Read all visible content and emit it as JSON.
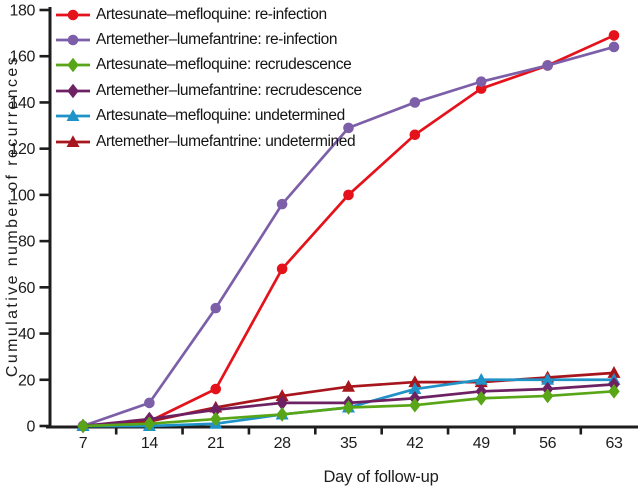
{
  "chart_data": {
    "type": "line",
    "title": "",
    "xlabel": "Day of follow-up",
    "ylabel": "Cumulative number of recurrences",
    "x": [
      7,
      14,
      21,
      28,
      35,
      42,
      49,
      56,
      63
    ],
    "xlim": [
      3.5,
      66.5
    ],
    "ylim": [
      0,
      180
    ],
    "y_tick_step": 20,
    "x_tick_labels": [
      "7",
      "14",
      "21",
      "28",
      "35",
      "42",
      "49",
      "56",
      "63"
    ],
    "grid": false,
    "legend_position": "top-left",
    "axis_color": "#1d1d1d",
    "series": [
      {
        "name": "Artesunate–mefloquine: re-infection",
        "marker": "circle",
        "color": "#e4121b",
        "values": [
          0,
          2,
          16,
          68,
          100,
          126,
          146,
          156,
          169
        ]
      },
      {
        "name": "Artemether–lumefantrine: re-infection",
        "marker": "circle",
        "color": "#7c5fa8",
        "values": [
          0,
          10,
          51,
          96,
          129,
          140,
          149,
          156,
          164
        ]
      },
      {
        "name": "Artesunate–mefloquine: recrudescence",
        "marker": "diamond",
        "color": "#58a618",
        "values": [
          0,
          1,
          3,
          5,
          8,
          9,
          12,
          13,
          15
        ]
      },
      {
        "name": "Artemether–lumefantrine: recrudescence",
        "marker": "diamond",
        "color": "#6d2062",
        "values": [
          0,
          3,
          7,
          10,
          10,
          12,
          15,
          16,
          18
        ]
      },
      {
        "name": "Artesunate–mefloquine: undetermined",
        "marker": "triangle",
        "color": "#1f93c8",
        "values": [
          0,
          0,
          1,
          5,
          8,
          16,
          20,
          20,
          20
        ]
      },
      {
        "name": "Artemether–lumefantrine: undetermined",
        "marker": "triangle",
        "color": "#a8161d",
        "values": [
          0,
          2,
          8,
          13,
          17,
          19,
          19,
          21,
          23
        ]
      }
    ]
  }
}
